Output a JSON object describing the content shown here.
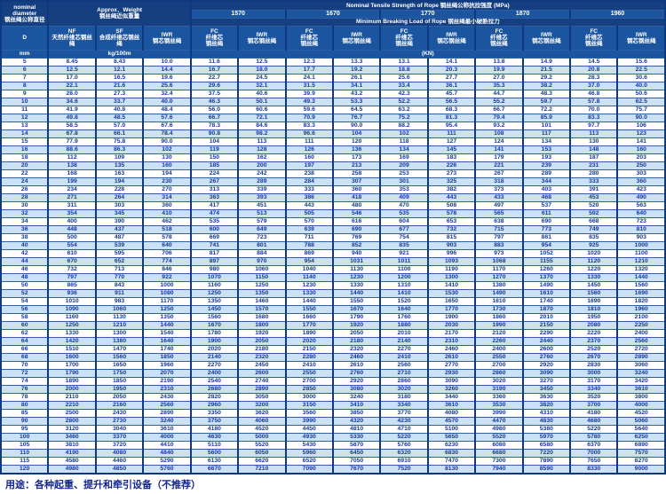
{
  "header": {
    "nominal_diameter": "nominal\ndiameter\n钢丝绳公称直径",
    "approx_weight": "Approx．Weight\n钢丝绳近似重量",
    "tensile_strength": "Nominal  Tensile  Strength  of  Rope  钢丝绳公称抗拉强度  (MPa)",
    "min_breaking": "Minimum  Breaking  Load  of  Rope  钢丝绳最小破断拉力",
    "strengths": [
      "1570",
      "1670",
      "1770",
      "1870",
      "1960"
    ],
    "col_d": "D",
    "col_nf": "NF\n天然纤维芯钢丝绳",
    "col_sf": "SF\n合成纤维芯钢丝绳",
    "col_iwr_weight": "IWR\n钢芯钢丝绳",
    "col_fc": "FC\n纤维芯\n钢丝绳",
    "col_iwr": "IWR\n钢芯钢丝绳",
    "unit_mm": "mm",
    "unit_kg": "kg/100m",
    "unit_kn": "(KN)"
  },
  "rows": [
    [
      "5",
      "8.45",
      "8.43",
      "10.0",
      "11.6",
      "12.5",
      "12.3",
      "13.3",
      "13.1",
      "14.1",
      "13.8",
      "14.9",
      "14.5",
      "15.6"
    ],
    [
      "6",
      "12.5",
      "12.1",
      "14.4",
      "16.7",
      "18.0",
      "17.7",
      "19.2",
      "18.8",
      "20.3",
      "19.9",
      "21.5",
      "20.8",
      "22.5"
    ],
    [
      "7",
      "17.0",
      "16.5",
      "19.6",
      "22.7",
      "24.5",
      "24.1",
      "26.1",
      "25.6",
      "27.7",
      "27.0",
      "29.2",
      "28.3",
      "30.6"
    ],
    [
      "8",
      "22.1",
      "21.6",
      "25.6",
      "29.6",
      "32.1",
      "31.5",
      "34.1",
      "33.4",
      "36.1",
      "35.3",
      "38.2",
      "37.0",
      "40.0"
    ],
    [
      "9",
      "28.0",
      "27.3",
      "32.4",
      "37.5",
      "40.6",
      "39.9",
      "43.2",
      "42.3",
      "45.7",
      "44.7",
      "48.3",
      "46.8",
      "50.6"
    ],
    [
      "10",
      "34.6",
      "33.7",
      "40.0",
      "46.3",
      "50.1",
      "49.3",
      "53.3",
      "52.2",
      "56.5",
      "55.2",
      "59.7",
      "57.8",
      "62.5"
    ],
    [
      "11",
      "41.9",
      "40.8",
      "48.4",
      "56.0",
      "60.6",
      "59.6",
      "64.5",
      "63.2",
      "68.3",
      "66.7",
      "72.2",
      "70.0",
      "75.7"
    ],
    [
      "12",
      "49.8",
      "48.5",
      "57.6",
      "66.7",
      "72.1",
      "70.9",
      "76.7",
      "75.2",
      "81.3",
      "79.4",
      "85.9",
      "83.3",
      "90.0"
    ],
    [
      "13",
      "58.5",
      "57.0",
      "67.6",
      "78.3",
      "84.6",
      "83.3",
      "90.0",
      "88.2",
      "95.4",
      "93.2",
      "101",
      "97.7",
      "106"
    ],
    [
      "14",
      "67.8",
      "66.1",
      "78.4",
      "90.8",
      "98.2",
      "96.6",
      "104",
      "102",
      "111",
      "108",
      "117",
      "113",
      "123"
    ],
    [
      "15",
      "77.9",
      "75.8",
      "90.0",
      "104",
      "113",
      "111",
      "120",
      "118",
      "127",
      "124",
      "134",
      "130",
      "141"
    ],
    [
      "16",
      "88.6",
      "86.3",
      "102",
      "119",
      "128",
      "126",
      "136",
      "134",
      "145",
      "141",
      "153",
      "148",
      "160"
    ],
    [
      "18",
      "112",
      "109",
      "130",
      "150",
      "162",
      "160",
      "173",
      "169",
      "183",
      "179",
      "193",
      "187",
      "203"
    ],
    [
      "20",
      "138",
      "135",
      "160",
      "185",
      "200",
      "197",
      "213",
      "209",
      "226",
      "221",
      "239",
      "231",
      "250"
    ],
    [
      "22",
      "168",
      "163",
      "194",
      "224",
      "242",
      "238",
      "258",
      "253",
      "273",
      "267",
      "289",
      "280",
      "303"
    ],
    [
      "24",
      "199",
      "194",
      "230",
      "267",
      "289",
      "284",
      "307",
      "301",
      "325",
      "318",
      "344",
      "333",
      "360"
    ],
    [
      "26",
      "234",
      "228",
      "270",
      "313",
      "339",
      "333",
      "360",
      "353",
      "382",
      "373",
      "403",
      "391",
      "423"
    ],
    [
      "28",
      "271",
      "264",
      "314",
      "363",
      "393",
      "386",
      "418",
      "409",
      "443",
      "433",
      "468",
      "453",
      "490"
    ],
    [
      "30",
      "311",
      "303",
      "360",
      "417",
      "451",
      "443",
      "480",
      "470",
      "508",
      "497",
      "537",
      "520",
      "563"
    ],
    [
      "32",
      "354",
      "345",
      "410",
      "474",
      "513",
      "505",
      "546",
      "535",
      "578",
      "565",
      "611",
      "592",
      "640"
    ],
    [
      "34",
      "400",
      "390",
      "462",
      "535",
      "579",
      "570",
      "616",
      "604",
      "653",
      "638",
      "690",
      "668",
      "723"
    ],
    [
      "36",
      "448",
      "437",
      "518",
      "600",
      "649",
      "639",
      "690",
      "677",
      "732",
      "715",
      "773",
      "749",
      "810"
    ],
    [
      "38",
      "500",
      "487",
      "578",
      "669",
      "723",
      "711",
      "769",
      "754",
      "815",
      "797",
      "861",
      "835",
      "903"
    ],
    [
      "40",
      "554",
      "539",
      "640",
      "741",
      "801",
      "788",
      "852",
      "835",
      "903",
      "883",
      "954",
      "925",
      "1000"
    ],
    [
      "42",
      "610",
      "595",
      "706",
      "817",
      "884",
      "869",
      "940",
      "921",
      "996",
      "973",
      "1052",
      "1020",
      "1100"
    ],
    [
      "44",
      "670",
      "652",
      "774",
      "897",
      "970",
      "954",
      "1031",
      "1011",
      "1093",
      "1068",
      "1155",
      "1120",
      "1210"
    ],
    [
      "46",
      "732",
      "713",
      "846",
      "980",
      "1060",
      "1040",
      "1130",
      "1100",
      "1190",
      "1170",
      "1260",
      "1220",
      "1320"
    ],
    [
      "48",
      "797",
      "770",
      "922",
      "1070",
      "1150",
      "1140",
      "1230",
      "1200",
      "1300",
      "1270",
      "1370",
      "1330",
      "1440"
    ],
    [
      "50",
      "865",
      "843",
      "1000",
      "1160",
      "1250",
      "1230",
      "1330",
      "1310",
      "1410",
      "1380",
      "1490",
      "1450",
      "1560"
    ],
    [
      "52",
      "936",
      "911",
      "1080",
      "1250",
      "1350",
      "1330",
      "1440",
      "1410",
      "1530",
      "1490",
      "1610",
      "1560",
      "1690"
    ],
    [
      "54",
      "1010",
      "983",
      "1170",
      "1350",
      "1460",
      "1440",
      "1550",
      "1520",
      "1650",
      "1610",
      "1740",
      "1690",
      "1820"
    ],
    [
      "56",
      "1090",
      "1060",
      "1250",
      "1450",
      "1570",
      "1550",
      "1670",
      "1640",
      "1770",
      "1730",
      "1870",
      "1810",
      "1960"
    ],
    [
      "58",
      "1160",
      "1130",
      "1350",
      "1560",
      "1680",
      "1660",
      "1790",
      "1760",
      "1900",
      "1860",
      "2010",
      "1950",
      "2100"
    ],
    [
      "60",
      "1250",
      "1210",
      "1440",
      "1670",
      "1800",
      "1770",
      "1920",
      "1880",
      "2030",
      "1990",
      "2150",
      "2080",
      "2250"
    ],
    [
      "62",
      "1330",
      "1300",
      "1540",
      "1780",
      "1920",
      "1890",
      "2050",
      "2010",
      "2170",
      "2120",
      "2290",
      "2220",
      "2400"
    ],
    [
      "64",
      "1420",
      "1380",
      "1640",
      "1900",
      "2050",
      "2020",
      "2180",
      "2140",
      "2310",
      "2260",
      "2440",
      "2370",
      "2560"
    ],
    [
      "66",
      "1510",
      "1470",
      "1740",
      "2020",
      "2180",
      "2150",
      "2320",
      "2270",
      "2460",
      "2400",
      "2600",
      "2520",
      "2720"
    ],
    [
      "68",
      "1600",
      "1560",
      "1850",
      "2140",
      "2320",
      "2280",
      "2460",
      "2410",
      "2610",
      "2550",
      "2760",
      "2670",
      "2890"
    ],
    [
      "70",
      "1700",
      "1650",
      "1960",
      "2270",
      "2450",
      "2410",
      "2610",
      "2560",
      "2770",
      "2700",
      "2920",
      "2830",
      "3060"
    ],
    [
      "72",
      "1790",
      "1750",
      "2070",
      "2400",
      "2600",
      "2550",
      "2760",
      "2710",
      "2930",
      "2860",
      "3090",
      "3000",
      "3240"
    ],
    [
      "74",
      "1890",
      "1850",
      "2190",
      "2540",
      "2740",
      "2700",
      "2920",
      "2860",
      "3090",
      "3020",
      "3270",
      "3170",
      "3420"
    ],
    [
      "76",
      "2000",
      "1950",
      "2310",
      "2680",
      "2890",
      "2850",
      "3080",
      "3020",
      "3260",
      "3190",
      "3450",
      "3340",
      "3610"
    ],
    [
      "78",
      "2110",
      "2050",
      "2430",
      "2820",
      "3050",
      "3000",
      "3240",
      "3180",
      "3440",
      "3360",
      "3630",
      "3520",
      "3800"
    ],
    [
      "80",
      "2210",
      "2160",
      "2560",
      "2960",
      "3200",
      "3150",
      "3410",
      "3340",
      "3610",
      "3530",
      "3820",
      "3700",
      "4000"
    ],
    [
      "85",
      "2500",
      "2430",
      "2890",
      "3350",
      "3620",
      "3560",
      "3850",
      "3770",
      "4080",
      "3990",
      "4310",
      "4180",
      "4520"
    ],
    [
      "90",
      "2800",
      "2730",
      "3240",
      "3750",
      "4060",
      "3990",
      "4320",
      "4230",
      "4570",
      "4470",
      "4830",
      "4680",
      "5060"
    ],
    [
      "95",
      "3120",
      "3040",
      "3610",
      "4180",
      "4520",
      "4450",
      "4810",
      "4710",
      "5100",
      "4980",
      "5380",
      "5220",
      "5640"
    ],
    [
      "100",
      "3460",
      "3370",
      "4000",
      "4630",
      "5000",
      "4930",
      "5330",
      "5220",
      "5650",
      "5520",
      "5970",
      "5780",
      "6250"
    ],
    [
      "105",
      "3810",
      "3720",
      "4410",
      "5110",
      "5520",
      "5430",
      "5870",
      "5760",
      "6230",
      "6080",
      "6580",
      "6370",
      "6890"
    ],
    [
      "110",
      "4190",
      "4080",
      "4840",
      "5600",
      "6050",
      "5960",
      "6450",
      "6320",
      "6830",
      "6680",
      "7220",
      "7000",
      "7570"
    ],
    [
      "115",
      "4580",
      "4460",
      "5290",
      "6130",
      "6620",
      "6520",
      "7050",
      "6910",
      "7470",
      "7300",
      "7890",
      "7650",
      "8270"
    ],
    [
      "120",
      "4980",
      "4850",
      "5760",
      "6670",
      "7210",
      "7090",
      "7670",
      "7520",
      "8130",
      "7940",
      "8590",
      "8330",
      "9000"
    ]
  ],
  "footer": {
    "usage": "用途：各种起重、提升和牵引设备（不推荐）"
  },
  "colors": {
    "header_bg": "#1b549f",
    "header_dark_bg": "#153f80",
    "stripe": "#cce1f4",
    "border": "#0d3a7e",
    "data_text": "#16399b"
  }
}
